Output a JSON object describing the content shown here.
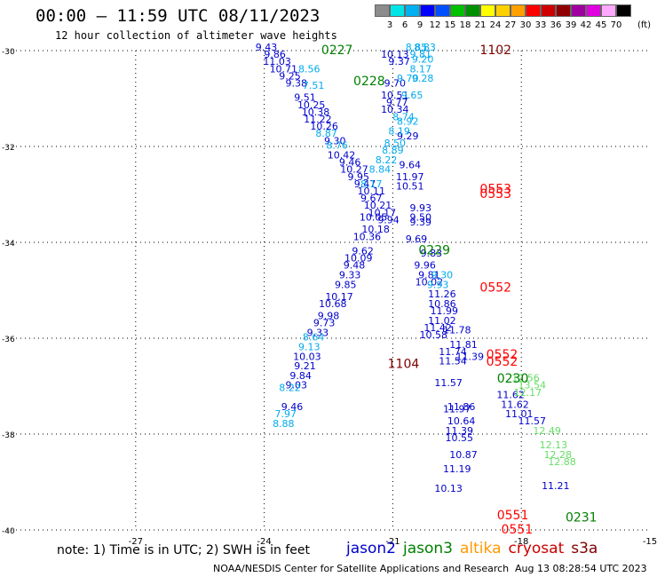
{
  "title": "00:00 – 11:59 UTC 08/11/2023",
  "subtitle": "12 hour collection of altimeter wave heights",
  "color_scale": {
    "unit": "(ft)",
    "labels": [
      "3",
      "6",
      "9",
      "12",
      "15",
      "18",
      "21",
      "24",
      "27",
      "30",
      "33",
      "36",
      "39",
      "42",
      "45",
      "70"
    ],
    "colors": [
      "#8c8c8c",
      "#00e6e6",
      "#00b0f0",
      "#0000ff",
      "#0050ff",
      "#00c000",
      "#009000",
      "#ffff00",
      "#ffd000",
      "#ffa000",
      "#ff0000",
      "#d00000",
      "#900000",
      "#a000a0",
      "#e000e0",
      "#ffa8ff",
      "#000000"
    ]
  },
  "note": "note: 1) Time is in UTC; 2) SWH is in feet",
  "legend": [
    {
      "label": "jason2",
      "color": "#0000cc"
    },
    {
      "label": "jason3",
      "color": "#008000"
    },
    {
      "label": "altika",
      "color": "#ff9900"
    },
    {
      "label": "cryosat",
      "color": "#cc0000"
    },
    {
      "label": "s3a",
      "color": "#800000"
    }
  ],
  "credit": "NOAA/NESDIS Center for Satellite Applications and Research",
  "timestamp": "Aug 13 08:28:54 UTC 2023",
  "chart_data": {
    "type": "scatter",
    "title": "00:00 – 11:59 UTC 08/11/2023",
    "subtitle": "12 hour collection of altimeter wave heights",
    "xlim": [
      -30,
      -15
    ],
    "ylim": [
      -40,
      -30
    ],
    "xticks": [
      -27,
      -24,
      -21,
      -18,
      -15
    ],
    "yticks": [
      -30,
      -32,
      -34,
      -36,
      -38,
      -40
    ],
    "grid": true,
    "value_unit": "ft",
    "track_labels": [
      {
        "text": "0227",
        "x": -22.3,
        "y": -30.0,
        "color": "#008000"
      },
      {
        "text": "1102",
        "x": -18.6,
        "y": -30.0,
        "color": "#800000"
      },
      {
        "text": "0228",
        "x": -21.55,
        "y": -30.65,
        "color": "#008000"
      },
      {
        "text": "0553",
        "x": -18.6,
        "y": -32.9,
        "color": "#ff0000"
      },
      {
        "text": "0553",
        "x": -18.6,
        "y": -33.0,
        "color": "#ff0000"
      },
      {
        "text": "0229",
        "x": -20.03,
        "y": -34.18,
        "color": "#008000"
      },
      {
        "text": "0552",
        "x": -18.6,
        "y": -34.95,
        "color": "#ff0000"
      },
      {
        "text": "0552",
        "x": -18.45,
        "y": -36.35,
        "color": "#ff0000"
      },
      {
        "text": "0552",
        "x": -18.45,
        "y": -36.5,
        "color": "#ff0000"
      },
      {
        "text": "1104",
        "x": -20.75,
        "y": -36.55,
        "color": "#800000"
      },
      {
        "text": "0230",
        "x": -18.2,
        "y": -36.85,
        "color": "#008000"
      },
      {
        "text": "0551",
        "x": -18.2,
        "y": -39.7,
        "color": "#ff0000"
      },
      {
        "text": "0551",
        "x": -18.1,
        "y": -40.0,
        "color": "#ff0000"
      },
      {
        "text": "0231",
        "x": -16.6,
        "y": -39.75,
        "color": "#008000"
      }
    ],
    "series": [
      {
        "name": "jason2",
        "points": [
          [
            -23.95,
            -30.0,
            "9.43"
          ],
          [
            -23.75,
            -30.15,
            "9.86"
          ],
          [
            -23.7,
            -30.3,
            "11.03"
          ],
          [
            -23.55,
            -30.45,
            "10.71"
          ],
          [
            -23.4,
            -30.6,
            "9.25"
          ],
          [
            -23.25,
            -30.75,
            "9.38"
          ],
          [
            -23.05,
            -31.05,
            "9.51"
          ],
          [
            -22.9,
            -31.2,
            "10.25"
          ],
          [
            -22.8,
            -31.35,
            "10.38"
          ],
          [
            -22.75,
            -31.5,
            "11.22"
          ],
          [
            -22.6,
            -31.65,
            "10.26"
          ],
          [
            -22.35,
            -31.95,
            "9.30"
          ],
          [
            -22.2,
            -32.25,
            "10.42"
          ],
          [
            -22.0,
            -32.4,
            "9.46"
          ],
          [
            -21.9,
            -32.55,
            "10.27"
          ],
          [
            -21.8,
            -32.7,
            "9.95"
          ],
          [
            -21.65,
            -32.85,
            "9.47"
          ],
          [
            -21.5,
            -33.0,
            "10.11"
          ],
          [
            -21.5,
            -33.15,
            "9.67"
          ],
          [
            -21.35,
            -33.3,
            "10.21"
          ],
          [
            -21.25,
            -33.45,
            "10.17"
          ],
          [
            -21.1,
            -33.6,
            "9.94"
          ],
          [
            -21.45,
            -33.55,
            "10.05"
          ],
          [
            -21.4,
            -33.8,
            "10.18"
          ],
          [
            -21.6,
            -33.95,
            "10.36"
          ],
          [
            -21.7,
            -34.25,
            "9.62"
          ],
          [
            -21.8,
            -34.4,
            "10.09"
          ],
          [
            -21.9,
            -34.55,
            "9.48"
          ],
          [
            -22.0,
            -34.75,
            "9.33"
          ],
          [
            -22.1,
            -34.95,
            "9.85"
          ],
          [
            -22.25,
            -35.2,
            "10.17"
          ],
          [
            -22.4,
            -35.35,
            "10.68"
          ],
          [
            -22.5,
            -35.6,
            "9.98"
          ],
          [
            -22.6,
            -35.75,
            "9.73"
          ],
          [
            -22.75,
            -35.95,
            "9.33"
          ],
          [
            -23.0,
            -36.45,
            "10.03"
          ],
          [
            -23.05,
            -36.65,
            "9.21"
          ],
          [
            -23.15,
            -36.85,
            "9.84"
          ],
          [
            -23.25,
            -37.05,
            "9.03"
          ],
          [
            -23.35,
            -37.5,
            "9.46"
          ],
          [
            -20.95,
            -30.15,
            "10.13"
          ],
          [
            -20.85,
            -30.3,
            "9.37"
          ],
          [
            -20.95,
            -30.75,
            "9.70"
          ],
          [
            -20.95,
            -31.0,
            "10.51"
          ],
          [
            -20.9,
            -31.15,
            "9.77"
          ],
          [
            -20.95,
            -31.3,
            "10.34"
          ],
          [
            -20.65,
            -31.85,
            "9.29"
          ],
          [
            -20.6,
            -32.45,
            "9.64"
          ],
          [
            -20.6,
            -32.7,
            "11.97"
          ],
          [
            -20.6,
            -32.9,
            "10.51"
          ],
          [
            -20.35,
            -33.35,
            "9.93"
          ],
          [
            -20.35,
            -33.55,
            "9.50"
          ],
          [
            -20.35,
            -33.65,
            "9.39"
          ],
          [
            -20.45,
            -34.0,
            "9.69"
          ],
          [
            -20.1,
            -34.3,
            "9.83"
          ],
          [
            -20.25,
            -34.55,
            "9.96"
          ],
          [
            -20.15,
            -34.75,
            "9.81"
          ],
          [
            -20.15,
            -34.9,
            "10.02"
          ],
          [
            -19.85,
            -35.15,
            "11.26"
          ],
          [
            -19.85,
            -35.35,
            "10.86"
          ],
          [
            -19.8,
            -35.5,
            "11.99"
          ],
          [
            -19.85,
            -35.7,
            "11.02"
          ],
          [
            -19.95,
            -35.85,
            "11.42"
          ],
          [
            -20.05,
            -36.0,
            "10.58"
          ],
          [
            -19.5,
            -35.9,
            "11.78"
          ],
          [
            -19.35,
            -36.2,
            "11.81"
          ],
          [
            -19.6,
            -36.35,
            "11.74"
          ],
          [
            -19.6,
            -36.55,
            "11.54"
          ],
          [
            -19.2,
            -36.45,
            "11.39"
          ],
          [
            -19.7,
            -37.0,
            "11.57"
          ],
          [
            -19.4,
            -37.5,
            "11.86"
          ],
          [
            -19.5,
            -37.55,
            "11.97"
          ],
          [
            -19.4,
            -37.8,
            "10.64"
          ],
          [
            -19.45,
            -38.0,
            "11.39"
          ],
          [
            -19.45,
            -38.15,
            "10.55"
          ],
          [
            -19.35,
            -38.5,
            "10.87"
          ],
          [
            -19.5,
            -38.8,
            "11.19"
          ],
          [
            -19.7,
            -39.2,
            "10.13"
          ],
          [
            -18.25,
            -37.25,
            "11.62"
          ],
          [
            -18.15,
            -37.45,
            "11.62"
          ],
          [
            -18.05,
            -37.65,
            "11.01"
          ],
          [
            -17.75,
            -37.8,
            "11.57"
          ],
          [
            -17.2,
            -39.15,
            "11.21"
          ]
        ]
      },
      {
        "name": "jason2-light",
        "points": [
          [
            -20.45,
            -30.0,
            "8.85"
          ],
          [
            -20.25,
            -30.0,
            "8.83"
          ],
          [
            -20.35,
            -30.15,
            "9.81"
          ],
          [
            -20.3,
            -30.25,
            "9.20"
          ],
          [
            -20.35,
            -30.45,
            "8.17"
          ],
          [
            -20.3,
            -30.65,
            "9.28"
          ],
          [
            -20.65,
            -30.65,
            "9.70"
          ],
          [
            -20.55,
            -31.0,
            "9.65"
          ],
          [
            -20.75,
            -31.45,
            "8.74"
          ],
          [
            -20.65,
            -31.55,
            "8.92"
          ],
          [
            -20.85,
            -31.75,
            "8.19"
          ],
          [
            -20.95,
            -32.0,
            "8.50"
          ],
          [
            -21.0,
            -32.15,
            "8.89"
          ],
          [
            -21.15,
            -32.35,
            "8.22"
          ],
          [
            -21.3,
            -32.55,
            "8.84"
          ],
          [
            -21.5,
            -32.85,
            "8.17"
          ],
          [
            -22.85,
            -30.8,
            "7.51"
          ],
          [
            -22.95,
            -30.45,
            "8.56"
          ],
          [
            -22.55,
            -31.8,
            "8.87"
          ],
          [
            -22.3,
            -32.05,
            "8.76"
          ],
          [
            -22.85,
            -36.05,
            "8.64"
          ],
          [
            -22.95,
            -36.25,
            "9.13"
          ],
          [
            -23.4,
            -37.1,
            "8.22"
          ],
          [
            -23.5,
            -37.65,
            "7.97"
          ],
          [
            -23.55,
            -37.85,
            "8.88"
          ],
          [
            -19.85,
            -34.75,
            "9.30"
          ],
          [
            -19.95,
            -34.95,
            "9.93"
          ]
        ]
      },
      {
        "name": "jason3",
        "points": [
          [
            -17.9,
            -36.9,
            "12.56"
          ],
          [
            -17.75,
            -37.05,
            "13.54"
          ],
          [
            -17.85,
            -37.2,
            "12.17"
          ],
          [
            -17.4,
            -38.0,
            "12.49"
          ],
          [
            -17.25,
            -38.3,
            "12.13"
          ],
          [
            -17.15,
            -38.5,
            "12.28"
          ],
          [
            -17.05,
            -38.65,
            "12.88"
          ]
        ]
      }
    ]
  }
}
